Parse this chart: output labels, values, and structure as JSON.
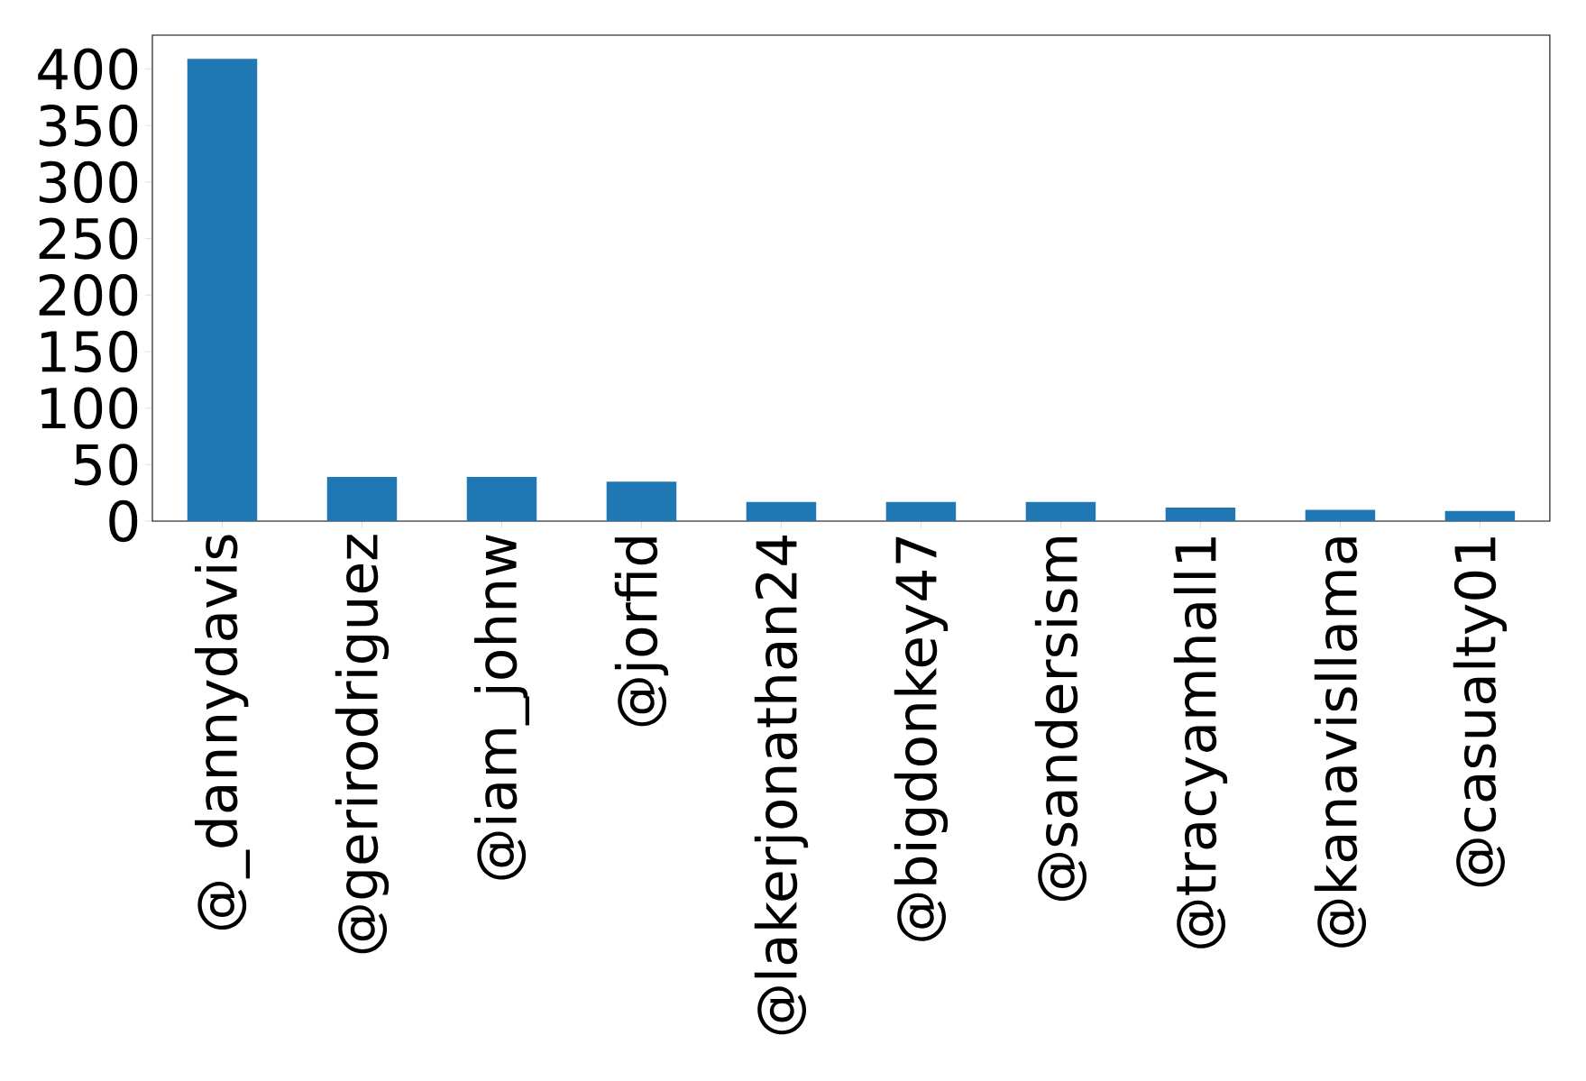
{
  "chart_data": {
    "type": "bar",
    "categories": [
      "@_dannydavis",
      "@gerirodriguez",
      "@iam_johnw",
      "@jorfid",
      "@lakerjonathan24",
      "@bigdonkey47",
      "@sandersism",
      "@tracyamhall1",
      "@kanavisllama",
      "@casualty01"
    ],
    "values": [
      409,
      39,
      39,
      35,
      17,
      17,
      17,
      12,
      10,
      9
    ],
    "color": "#1f77b4",
    "ylim": [
      0,
      430
    ],
    "yticks": [
      0,
      50,
      100,
      150,
      200,
      250,
      300,
      350,
      400
    ]
  }
}
